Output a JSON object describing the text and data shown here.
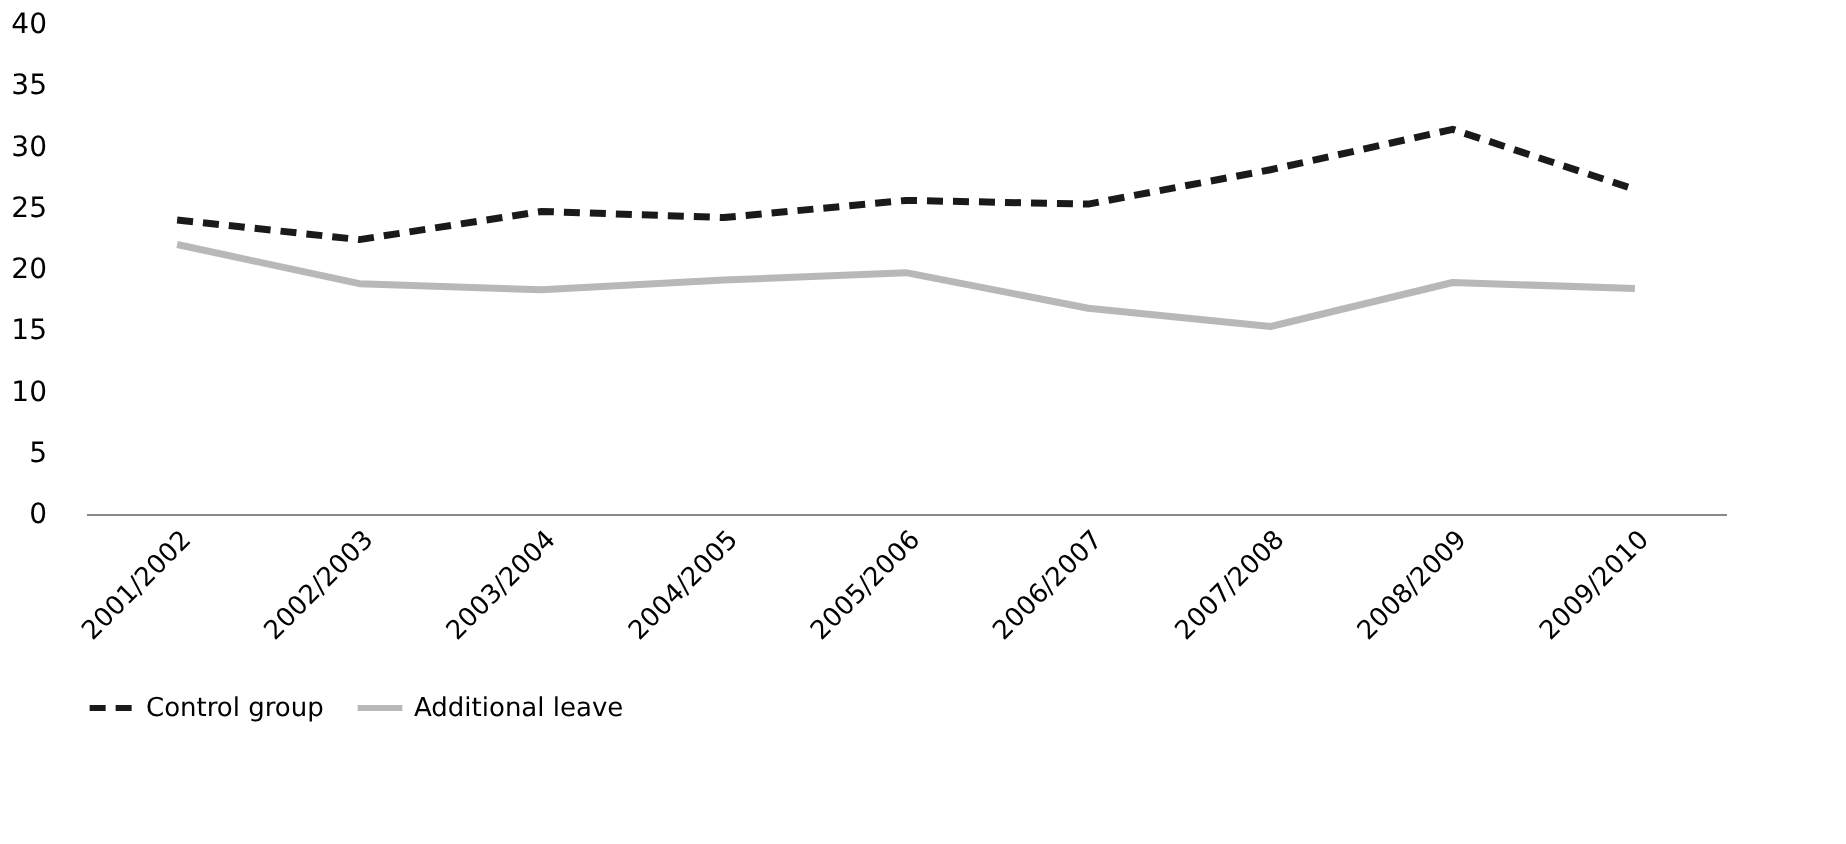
{
  "chart_data": {
    "type": "line",
    "categories": [
      "2001/2002",
      "2002/2003",
      "2003/2004",
      "2004/2005",
      "2005/2006",
      "2006/2007",
      "2007/2008",
      "2008/2009",
      "2009/2010"
    ],
    "series": [
      {
        "name": "Control group",
        "color": "#1a1a1a",
        "line_style": "dashed",
        "values": [
          24.0,
          22.4,
          24.7,
          24.2,
          25.6,
          25.3,
          28.1,
          31.4,
          26.5
        ]
      },
      {
        "name": "Additional leave",
        "color": "#b8b8b8",
        "line_style": "solid",
        "values": [
          22.0,
          18.8,
          18.3,
          19.1,
          19.7,
          16.8,
          15.3,
          18.9,
          18.4
        ]
      }
    ],
    "ylim": [
      0,
      40
    ],
    "yticks": [
      0,
      5,
      10,
      15,
      20,
      25,
      30,
      35,
      40
    ],
    "grid": false,
    "legend": "bottom"
  }
}
